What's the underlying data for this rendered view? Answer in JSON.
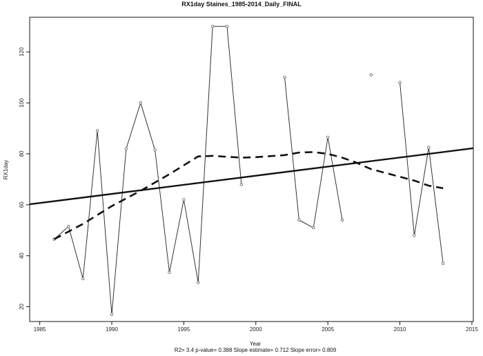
{
  "chart_data": {
    "type": "line",
    "title": "RX1day   Staines_1985-2014_Daily_FINAL",
    "xlabel": "Year",
    "ylabel": "RX1day",
    "xlim": [
      1984.3,
      2015.1
    ],
    "ylim": [
      14.2,
      133.6
    ],
    "xticks": [
      1985,
      1990,
      1995,
      2000,
      2005,
      2010,
      2015
    ],
    "yticks": [
      20,
      40,
      60,
      80,
      100,
      120
    ],
    "grid": false,
    "stats_text": "R2= 3.4  p-value= 0.388  Slope estimate= 0.712  Slope error= 0.809",
    "series": [
      {
        "style": "line-with-points",
        "x": [
          1986,
          1987,
          1988,
          1989,
          1990,
          1991,
          1992,
          1993,
          1994,
          1995,
          1996,
          1997,
          1998,
          1999,
          2000,
          2001,
          2002,
          2003,
          2004,
          2005,
          2006,
          2007,
          2008,
          2009,
          2010,
          2011,
          2012,
          2013
        ],
        "y": [
          46.5,
          51.5,
          31,
          89,
          17,
          82,
          100,
          81.5,
          33.5,
          62,
          29.5,
          130,
          130,
          68,
          null,
          null,
          110,
          54,
          51,
          86.5,
          54,
          null,
          111,
          null,
          108,
          48,
          82.5,
          37
        ]
      },
      {
        "style": "dashed-smooth",
        "x": [
          1986,
          1988,
          1990,
          1992,
          1994,
          1996,
          1997,
          1999,
          2000,
          2002,
          2003,
          2004,
          2005,
          2006,
          2007,
          2008,
          2010,
          2011,
          2012,
          2013
        ],
        "y": [
          46.5,
          52.5,
          59.5,
          65.5,
          72,
          79,
          79.2,
          78.5,
          78.7,
          79.5,
          80.5,
          80.7,
          80,
          78.5,
          76.5,
          74,
          71,
          69.5,
          67.5,
          66.5
        ]
      },
      {
        "style": "trend-line",
        "x": [
          1984.3,
          2015.1
        ],
        "y": [
          60.2,
          82.2
        ]
      }
    ]
  }
}
